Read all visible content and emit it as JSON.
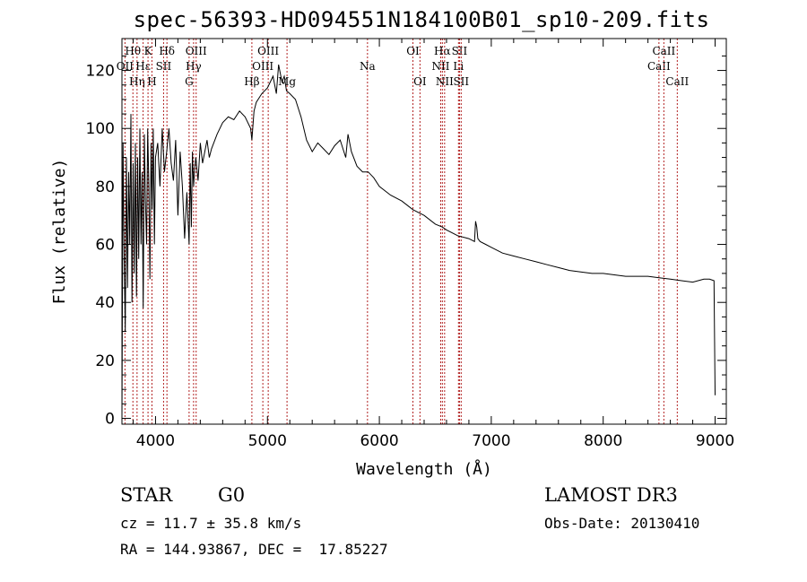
{
  "title": "spec-56393-HD094551N184100B01_sp10-209.fits",
  "chart_data": {
    "type": "line",
    "xlabel": "Wavelength (Å)",
    "ylabel": "Flux (relative)",
    "xlim": [
      3700,
      9100
    ],
    "ylim": [
      -2,
      131
    ],
    "xticks": [
      4000,
      5000,
      6000,
      7000,
      8000,
      9000
    ],
    "yticks": [
      0,
      20,
      40,
      60,
      80,
      100,
      120
    ],
    "series": [
      {
        "name": "spectrum",
        "x": [
          3700,
          3710,
          3720,
          3730,
          3740,
          3750,
          3760,
          3770,
          3780,
          3790,
          3800,
          3810,
          3820,
          3830,
          3840,
          3850,
          3860,
          3870,
          3880,
          3890,
          3900,
          3910,
          3920,
          3930,
          3940,
          3950,
          3960,
          3970,
          3980,
          3990,
          4000,
          4020,
          4040,
          4060,
          4080,
          4100,
          4120,
          4140,
          4160,
          4180,
          4200,
          4220,
          4240,
          4260,
          4280,
          4300,
          4310,
          4320,
          4330,
          4340,
          4350,
          4360,
          4380,
          4400,
          4420,
          4440,
          4460,
          4480,
          4500,
          4550,
          4600,
          4650,
          4700,
          4750,
          4800,
          4850,
          4861,
          4880,
          4900,
          4950,
          5000,
          5050,
          5080,
          5100,
          5130,
          5150,
          5170,
          5200,
          5250,
          5300,
          5350,
          5400,
          5450,
          5500,
          5550,
          5600,
          5650,
          5700,
          5720,
          5750,
          5800,
          5850,
          5900,
          5950,
          6000,
          6100,
          6200,
          6300,
          6400,
          6500,
          6563,
          6600,
          6700,
          6800,
          6850,
          6860,
          6870,
          6880,
          6900,
          6950,
          7000,
          7100,
          7200,
          7300,
          7400,
          7500,
          7600,
          7700,
          7800,
          7900,
          8000,
          8100,
          8200,
          8300,
          8400,
          8500,
          8600,
          8700,
          8800,
          8900,
          8950,
          8990,
          9000
        ],
        "values": [
          0,
          95,
          55,
          30,
          90,
          45,
          85,
          60,
          105,
          40,
          88,
          50,
          95,
          42,
          90,
          55,
          100,
          60,
          85,
          38,
          98,
          75,
          60,
          100,
          80,
          48,
          95,
          72,
          100,
          60,
          90,
          95,
          80,
          100,
          85,
          92,
          100,
          88,
          82,
          96,
          70,
          92,
          80,
          62,
          78,
          60,
          88,
          66,
          92,
          80,
          86,
          90,
          82,
          95,
          88,
          92,
          96,
          90,
          93,
          98,
          102,
          104,
          103,
          106,
          104,
          100,
          96,
          106,
          109,
          112,
          114,
          118,
          112,
          122,
          116,
          118,
          113,
          112,
          110,
          104,
          96,
          92,
          95,
          93,
          91,
          94,
          96,
          90,
          98,
          92,
          87,
          85,
          85,
          83,
          80,
          77,
          75,
          72,
          70,
          67,
          66,
          65,
          63,
          62,
          61,
          68,
          66,
          62,
          61,
          60,
          59,
          57,
          56,
          55,
          54,
          53,
          52,
          51,
          50.5,
          50,
          50,
          49.5,
          49,
          49,
          49,
          48.5,
          48,
          47.5,
          47,
          48,
          48,
          47.5,
          8
        ]
      }
    ],
    "line_markers": [
      {
        "label": "OII",
        "wave": 3727,
        "row": 2
      },
      {
        "label": "Hθ",
        "wave": 3798,
        "row": 1
      },
      {
        "label": "Hη",
        "wave": 3835,
        "row": 3
      },
      {
        "label": "Hε",
        "wave": 3889,
        "row": 2
      },
      {
        "label": "K",
        "wave": 3933,
        "row": 1
      },
      {
        "label": "H",
        "wave": 3968,
        "row": 3
      },
      {
        "label": "SII",
        "wave": 4072,
        "row": 2
      },
      {
        "label": "Hδ",
        "wave": 4102,
        "row": 1
      },
      {
        "label": "G",
        "wave": 4300,
        "row": 3
      },
      {
        "label": "Hγ",
        "wave": 4340,
        "row": 2
      },
      {
        "label": "OIII",
        "wave": 4363,
        "row": 1
      },
      {
        "label": "Hβ",
        "wave": 4861,
        "row": 3
      },
      {
        "label": "OIII",
        "wave": 4959,
        "row": 2
      },
      {
        "label": "OIII",
        "wave": 5007,
        "row": 1
      },
      {
        "label": "Mg",
        "wave": 5175,
        "row": 3
      },
      {
        "label": "Na",
        "wave": 5894,
        "row": 2
      },
      {
        "label": "OI",
        "wave": 6300,
        "row": 1
      },
      {
        "label": "OI",
        "wave": 6363,
        "row": 3
      },
      {
        "label": "NII",
        "wave": 6548,
        "row": 2
      },
      {
        "label": "Hα",
        "wave": 6563,
        "row": 1
      },
      {
        "label": "NII",
        "wave": 6583,
        "row": 3
      },
      {
        "label": "Li",
        "wave": 6707,
        "row": 2
      },
      {
        "label": "SII",
        "wave": 6716,
        "row": 1
      },
      {
        "label": "SII",
        "wave": 6731,
        "row": 3
      },
      {
        "label": "CaII",
        "wave": 8498,
        "row": 2
      },
      {
        "label": "CaII",
        "wave": 8542,
        "row": 1
      },
      {
        "label": "CaII",
        "wave": 8662,
        "row": 3
      }
    ]
  },
  "info": {
    "class": "STAR",
    "subclass": "G0",
    "survey": "LAMOST DR3",
    "cz": "cz = 11.7 ± 35.8 km/s",
    "obs_date": "Obs-Date: 20130410",
    "radec": "RA = 144.93867, DEC =  17.85227"
  }
}
